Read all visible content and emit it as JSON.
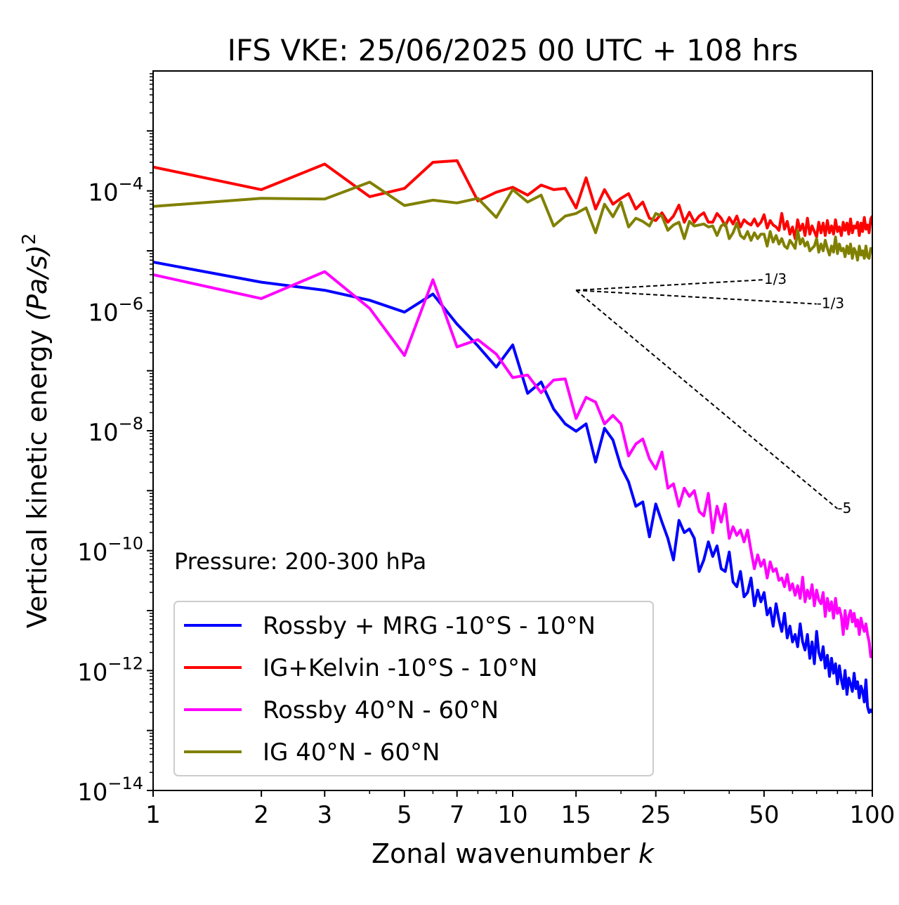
{
  "chart_data": {
    "type": "line",
    "title": "IFS VKE: 25/06/2025 00 UTC + 108 hrs",
    "xlabel": "Zonal wavenumber ",
    "xlabel_italic": "k",
    "ylabel": "Vertical kinetic energy ",
    "ylabel_italic": "(Pa/s)",
    "ylabel_sup": "2",
    "x_scale": "log",
    "y_scale": "log",
    "xlim": [
      1,
      100
    ],
    "ylim": [
      1e-14,
      0.01
    ],
    "x_ticks": [
      1,
      2,
      3,
      5,
      7,
      10,
      15,
      25,
      50,
      100
    ],
    "x_tick_labels": [
      "1",
      "2",
      "3",
      "5",
      "7",
      "10",
      "15",
      "25",
      "50",
      "100"
    ],
    "y_ticks": [
      {
        "value": 1e-14,
        "base": "10",
        "exp": "−14"
      },
      {
        "value": 1e-12,
        "base": "10",
        "exp": "−12"
      },
      {
        "value": 1e-10,
        "base": "10",
        "exp": "−10"
      },
      {
        "value": 1e-08,
        "base": "10",
        "exp": "−8"
      },
      {
        "value": 1e-06,
        "base": "10",
        "exp": "−6"
      },
      {
        "value": 0.0001,
        "base": "10",
        "exp": "−4"
      }
    ],
    "annotation": "Pressure: 200-300 hPa",
    "legend_position": "lower-left",
    "reference_slopes": [
      {
        "label": "1/3",
        "x0": 15,
        "y0": 2.2e-06,
        "x1": 50,
        "y1": 3.3e-06
      },
      {
        "label": "-1/3",
        "x0": 15,
        "y0": 2.2e-06,
        "x1": 70,
        "y1": 1.3e-06
      },
      {
        "label": "-5",
        "x0": 15,
        "y0": 2.2e-06,
        "x1": 80,
        "y1": 5e-10
      }
    ],
    "series": [
      {
        "name": "Rossby + MRG -10°S - 10°N",
        "color": "#0000ff",
        "x": [
          1,
          2,
          3,
          4,
          5,
          6,
          7,
          8,
          9,
          10,
          11,
          12,
          13,
          14,
          15,
          16,
          17,
          18,
          19,
          20,
          21,
          22,
          23,
          24,
          25,
          26,
          27,
          28,
          29,
          30,
          31,
          32,
          33,
          34,
          35,
          36,
          37,
          38,
          39,
          40,
          41,
          42,
          43,
          44,
          45,
          46,
          47,
          48,
          49,
          50,
          51,
          52,
          53,
          54,
          55,
          56,
          57,
          58,
          59,
          60,
          61,
          62,
          63,
          64,
          65,
          66,
          67,
          68,
          69,
          70,
          71,
          72,
          73,
          74,
          75,
          76,
          77,
          78,
          79,
          80,
          81,
          82,
          83,
          84,
          85,
          86,
          87,
          88,
          89,
          90,
          91,
          92,
          93,
          94,
          95,
          96,
          97,
          98,
          99,
          100
        ],
        "y": [
          6.5e-06,
          3e-06,
          2.2e-06,
          1.5e-06,
          9.5e-07,
          1.9e-06,
          6e-07,
          2.6e-07,
          1.15e-07,
          2.7e-07,
          4.2e-08,
          6.5e-08,
          2.3e-08,
          1.3e-08,
          9.8e-09,
          1.3e-08,
          3e-09,
          1.1e-08,
          7e-09,
          2.5e-09,
          1.4e-09,
          5.5e-10,
          6.5e-10,
          1.7e-10,
          6e-10,
          3e-10,
          1.6e-10,
          7e-11,
          3.2e-10,
          2e-10,
          2.3e-10,
          1.6e-10,
          4.5e-11,
          7e-11,
          1.4e-10,
          8e-11,
          1.2e-10,
          5e-11,
          4.5e-11,
          9.5e-11,
          3e-11,
          2.5e-11,
          4.5e-11,
          1.7e-11,
          2e-11,
          3.5e-11,
          1.2e-11,
          2.2e-11,
          1.4e-11,
          2e-11,
          8.5e-12,
          1.1e-11,
          5.5e-12,
          1.3e-11,
          7e-12,
          4.5e-12,
          9e-12,
          3.5e-12,
          5.5e-12,
          3e-12,
          4e-12,
          2.5e-12,
          6e-12,
          3e-12,
          2.2e-12,
          4e-12,
          1.6e-12,
          3e-12,
          1.3e-12,
          4.5e-12,
          2e-12,
          1.5e-12,
          2.5e-12,
          1.1e-12,
          1.8e-12,
          8e-13,
          1.6e-12,
          9e-13,
          1.3e-12,
          6e-13,
          1.2e-12,
          7e-13,
          5e-13,
          1e-12,
          4e-13,
          7.5e-13,
          6e-13,
          4.5e-13,
          9e-13,
          5e-13,
          6.5e-13,
          3.5e-13,
          5.5e-13,
          4.5e-13,
          3e-13,
          7e-13,
          2.5e-13,
          2e-13,
          2.2e-13,
          2e-13
        ]
      },
      {
        "name": "IG+Kelvin -10°S - 10°N",
        "color": "#ff0000",
        "x": [
          1,
          2,
          3,
          4,
          5,
          6,
          7,
          8,
          9,
          10,
          11,
          12,
          13,
          14,
          15,
          16,
          17,
          18,
          19,
          20,
          21,
          22,
          23,
          24,
          25,
          26,
          27,
          28,
          29,
          30,
          31,
          32,
          33,
          34,
          35,
          36,
          37,
          38,
          39,
          40,
          41,
          42,
          43,
          44,
          45,
          46,
          47,
          48,
          49,
          50,
          51,
          52,
          53,
          54,
          55,
          56,
          57,
          58,
          59,
          60,
          61,
          62,
          63,
          64,
          65,
          66,
          67,
          68,
          69,
          70,
          71,
          72,
          73,
          74,
          75,
          76,
          77,
          78,
          79,
          80,
          81,
          82,
          83,
          84,
          85,
          86,
          87,
          88,
          89,
          90,
          91,
          92,
          93,
          94,
          95,
          96,
          97,
          98,
          99,
          100
        ],
        "y": [
          0.00025,
          0.000105,
          0.00028,
          8e-05,
          0.00011,
          0.0003,
          0.00032,
          6.8e-05,
          9.5e-05,
          0.000115,
          8.5e-05,
          0.000125,
          0.000105,
          0.00011,
          5.2e-05,
          0.000165,
          5e-05,
          0.000105,
          6e-05,
          7.5e-05,
          9e-05,
          5e-05,
          6.5e-05,
          3.5e-05,
          3.2e-05,
          4.3e-05,
          3e-05,
          3.8e-05,
          5.8e-05,
          3e-05,
          4.4e-05,
          3e-05,
          3.8e-05,
          4.3e-05,
          3e-05,
          3e-05,
          4.2e-05,
          3.5e-05,
          2.6e-05,
          3.6e-05,
          2.8e-05,
          3.8e-05,
          2.5e-05,
          3.3e-05,
          2.9e-05,
          2.7e-05,
          3.4e-05,
          2.6e-05,
          3e-05,
          4e-05,
          2.4e-05,
          3.2e-05,
          2.7e-05,
          2.5e-05,
          2.2e-05,
          4.2e-05,
          2.3e-05,
          3.1e-05,
          1.9e-05,
          2.5e-05,
          1.6e-05,
          3.3e-05,
          2.2e-05,
          2.8e-05,
          1.8e-05,
          3.5e-05,
          1.9e-05,
          2.6e-05,
          2.1e-05,
          1.7e-05,
          3e-05,
          2e-05,
          2.9e-05,
          1.8e-05,
          3.2e-05,
          2e-05,
          2.6e-05,
          1.9e-05,
          3.3e-05,
          2.1e-05,
          2.5e-05,
          1.8e-05,
          3e-05,
          2.2e-05,
          2.9e-05,
          1.9e-05,
          3.4e-05,
          2e-05,
          2.6e-05,
          2.4e-05,
          3e-05,
          1.8e-05,
          2.9e-05,
          2.1e-05,
          3.6e-05,
          2.3e-05,
          2.7e-05,
          2e-05,
          3.4e-05,
          3.8e-05
        ]
      },
      {
        "name": "Rossby 40°N - 60°N",
        "color": "#ff00ff",
        "x": [
          1,
          2,
          3,
          4,
          5,
          6,
          7,
          8,
          9,
          10,
          11,
          12,
          13,
          14,
          15,
          16,
          17,
          18,
          19,
          20,
          21,
          22,
          23,
          24,
          25,
          26,
          27,
          28,
          29,
          30,
          31,
          32,
          33,
          34,
          35,
          36,
          37,
          38,
          39,
          40,
          41,
          42,
          43,
          44,
          45,
          46,
          47,
          48,
          49,
          50,
          51,
          52,
          53,
          54,
          55,
          56,
          57,
          58,
          59,
          60,
          61,
          62,
          63,
          64,
          65,
          66,
          67,
          68,
          69,
          70,
          71,
          72,
          73,
          74,
          75,
          76,
          77,
          78,
          79,
          80,
          81,
          82,
          83,
          84,
          85,
          86,
          87,
          88,
          89,
          90,
          91,
          92,
          93,
          94,
          95,
          96,
          97,
          98,
          99,
          100
        ],
        "y": [
          4e-06,
          1.6e-06,
          4.5e-06,
          1.1e-06,
          1.8e-07,
          3.3e-06,
          2.5e-07,
          3.3e-07,
          1.9e-07,
          7.7e-08,
          8.5e-08,
          4.3e-08,
          7e-08,
          7.3e-08,
          1.6e-08,
          3.6e-08,
          3e-08,
          1.3e-08,
          1.8e-08,
          1.3e-08,
          3.8e-09,
          6e-09,
          7.3e-09,
          3.4e-09,
          2.3e-09,
          4.4e-09,
          1.1e-09,
          1.3e-09,
          5.5e-10,
          1.1e-09,
          8e-10,
          1e-09,
          4.5e-10,
          3.8e-10,
          9e-10,
          2e-10,
          5.5e-10,
          3e-10,
          6e-10,
          1.6e-10,
          2.5e-10,
          1.8e-10,
          2.2e-10,
          1.4e-10,
          2.2e-10,
          1e-10,
          5e-11,
          8.5e-11,
          5.5e-11,
          7e-11,
          3.5e-11,
          6.5e-11,
          4.5e-11,
          5e-11,
          3.2e-11,
          3.5e-11,
          2.5e-11,
          4e-11,
          2.2e-11,
          2.8e-11,
          1.8e-11,
          2.6e-11,
          1.6e-11,
          3.6e-11,
          1.4e-11,
          2.2e-11,
          1.6e-11,
          2.7e-11,
          1.2e-11,
          2.2e-11,
          1.5e-11,
          1.3e-11,
          2e-11,
          8e-12,
          1.6e-11,
          1e-11,
          1.4e-11,
          7.5e-12,
          1.6e-11,
          9e-12,
          1.1e-11,
          8e-12,
          4e-12,
          1e-11,
          5e-12,
          8e-12,
          1e-11,
          6.5e-12,
          9e-12,
          5.5e-12,
          7e-12,
          4e-12,
          7.5e-12,
          5.5e-12,
          4.5e-12,
          6e-12,
          4e-12,
          3e-12,
          1.7e-12,
          2e-12
        ]
      },
      {
        "name": "IG 40°N - 60°N",
        "color": "#808000",
        "x": [
          1,
          2,
          3,
          4,
          5,
          6,
          7,
          8,
          9,
          10,
          11,
          12,
          13,
          14,
          15,
          16,
          17,
          18,
          19,
          20,
          21,
          22,
          23,
          24,
          25,
          26,
          27,
          28,
          29,
          30,
          31,
          32,
          33,
          34,
          35,
          36,
          37,
          38,
          39,
          40,
          41,
          42,
          43,
          44,
          45,
          46,
          47,
          48,
          49,
          50,
          51,
          52,
          53,
          54,
          55,
          56,
          57,
          58,
          59,
          60,
          61,
          62,
          63,
          64,
          65,
          66,
          67,
          68,
          69,
          70,
          71,
          72,
          73,
          74,
          75,
          76,
          77,
          78,
          79,
          80,
          81,
          82,
          83,
          84,
          85,
          86,
          87,
          88,
          89,
          90,
          91,
          92,
          93,
          94,
          95,
          96,
          97,
          98,
          99,
          100
        ],
        "y": [
          5.5e-05,
          7.5e-05,
          7.3e-05,
          0.00014,
          5.7e-05,
          7e-05,
          6.3e-05,
          7.5e-05,
          3.6e-05,
          0.000105,
          6.5e-05,
          8.5e-05,
          2.6e-05,
          3.8e-05,
          4.2e-05,
          5.2e-05,
          2e-05,
          6e-05,
          3.7e-05,
          6.5e-05,
          2.5e-05,
          3.5e-05,
          3.1e-05,
          2.6e-05,
          4.2e-05,
          3.8e-05,
          2.2e-05,
          2.7e-05,
          3e-05,
          1.6e-05,
          3.1e-05,
          2.6e-05,
          2.7e-05,
          2.8e-05,
          2.5e-05,
          2.6e-05,
          1.8e-05,
          2.6e-05,
          2.9e-05,
          1.6e-05,
          2e-05,
          2.9e-05,
          1.8e-05,
          1.6e-05,
          2.1e-05,
          1.5e-05,
          2e-05,
          1.6e-05,
          1.9e-05,
          1.9e-05,
          1.2e-05,
          2.1e-05,
          1.4e-05,
          1.8e-05,
          1.3e-05,
          1.6e-05,
          1.2e-05,
          1.1e-05,
          1.5e-05,
          1.3e-05,
          1.1e-05,
          2.2e-05,
          1.3e-05,
          1.6e-05,
          1.2e-05,
          1.4e-05,
          1e-05,
          1.1e-05,
          1.2e-05,
          1.6e-05,
          9.5e-06,
          1.3e-05,
          1e-05,
          1.5e-05,
          1.1e-05,
          8.5e-06,
          1.2e-05,
          9.5e-06,
          1.7e-05,
          9e-06,
          1.3e-05,
          1e-05,
          1.1e-05,
          8e-06,
          1.2e-05,
          9e-06,
          1.3e-05,
          7.5e-06,
          1.1e-05,
          9.5e-06,
          7e-06,
          1.2e-05,
          8.5e-06,
          1e-05,
          7.5e-06,
          1.2e-05,
          8e-06,
          7.5e-06,
          1.1e-05,
          9.5e-06
        ]
      }
    ]
  }
}
